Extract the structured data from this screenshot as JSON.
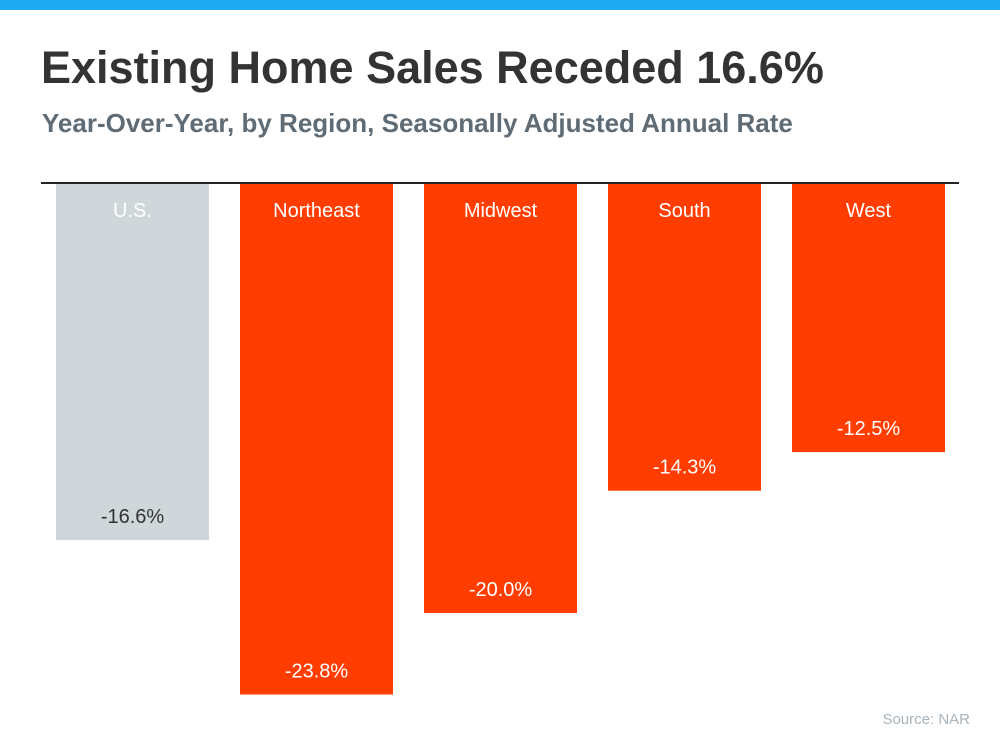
{
  "title": "Existing Home Sales Receded 16.6%",
  "subtitle": "Year-Over-Year, by Region, Seasonally Adjusted Annual Rate",
  "source": "Source: NAR",
  "colors": {
    "accent_bar": "#1eaaf1",
    "baseline": "#222222",
    "us_bar": "#cfd7da",
    "region_bar": "#ff3d00",
    "us_text": "#ffffff",
    "us_value_text": "#333333",
    "region_text": "#ffffff"
  },
  "chart_data": {
    "type": "bar",
    "orientation": "vertical-negative",
    "categories": [
      "U.S.",
      "Northeast",
      "Midwest",
      "South",
      "West"
    ],
    "values": [
      -16.6,
      -23.8,
      -20.0,
      -14.3,
      -12.5
    ],
    "value_labels": [
      "-16.6%",
      "-23.8%",
      "-20.0%",
      "-14.3%",
      "-12.5%"
    ],
    "unit": "%",
    "ylim": [
      -25,
      0
    ],
    "grid": false,
    "legend": "none"
  }
}
